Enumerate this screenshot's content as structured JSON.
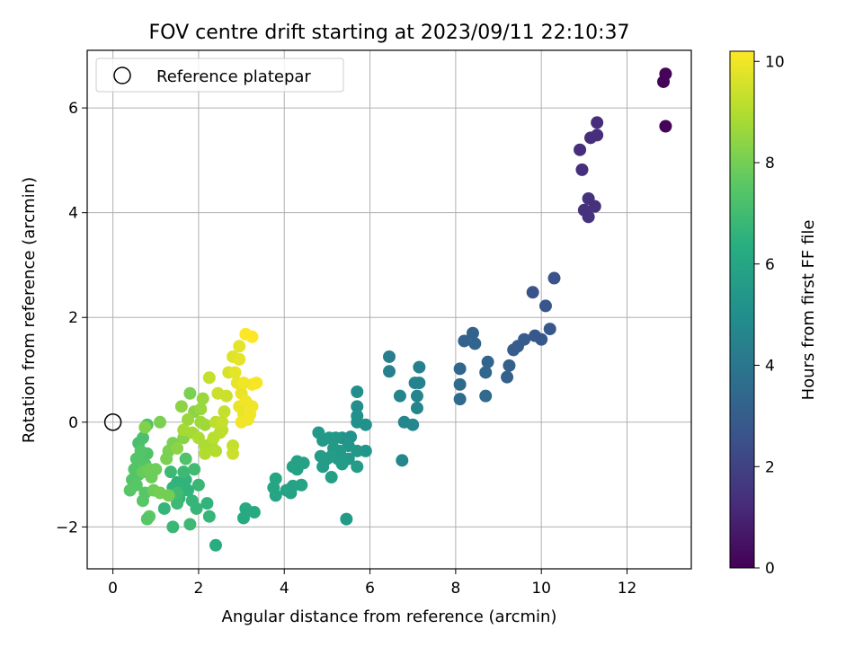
{
  "chart_data": {
    "type": "scatter",
    "title": "FOV centre drift starting at 2023/09/11 22:10:37",
    "xlabel": "Angular distance from reference (arcmin)",
    "ylabel": "Rotation from reference (arcmin)",
    "xlim": [
      -0.6,
      13.5
    ],
    "ylim": [
      -2.8,
      7.1
    ],
    "xticks": [
      0,
      2,
      4,
      6,
      8,
      10,
      12
    ],
    "yticks": [
      -2,
      0,
      2,
      4,
      6
    ],
    "grid": true,
    "legend": {
      "position": "top-left",
      "entries": [
        "Reference platepar"
      ]
    },
    "reference_point": {
      "x": 0,
      "y": 0
    },
    "colorbar": {
      "label": "Hours from first FF file",
      "range": [
        0,
        10.2
      ],
      "ticks": [
        0,
        2,
        4,
        6,
        8,
        10
      ],
      "colormap": "viridis"
    },
    "points": [
      [
        12.9,
        6.65,
        0.1
      ],
      [
        12.85,
        6.5,
        0.1
      ],
      [
        12.9,
        5.65,
        0.05
      ],
      [
        11.3,
        5.72,
        1.3
      ],
      [
        11.3,
        5.48,
        1.3
      ],
      [
        11.15,
        5.43,
        1.3
      ],
      [
        10.9,
        5.2,
        1.3
      ],
      [
        10.95,
        4.82,
        1.35
      ],
      [
        11.1,
        4.27,
        1.4
      ],
      [
        11.0,
        4.05,
        1.4
      ],
      [
        11.1,
        3.92,
        1.4
      ],
      [
        11.25,
        4.12,
        1.4
      ],
      [
        10.3,
        2.75,
        2.6
      ],
      [
        9.8,
        2.48,
        2.6
      ],
      [
        10.1,
        2.22,
        2.7
      ],
      [
        10.2,
        1.78,
        2.8
      ],
      [
        9.85,
        1.65,
        2.8
      ],
      [
        10.0,
        1.58,
        2.8
      ],
      [
        9.6,
        1.58,
        2.9
      ],
      [
        9.45,
        1.45,
        2.9
      ],
      [
        9.35,
        1.38,
        3.0
      ],
      [
        9.25,
        1.08,
        3.1
      ],
      [
        9.2,
        0.86,
        3.1
      ],
      [
        8.4,
        1.7,
        3.2
      ],
      [
        8.2,
        1.55,
        3.2
      ],
      [
        8.45,
        1.5,
        3.3
      ],
      [
        8.75,
        1.15,
        3.3
      ],
      [
        8.1,
        1.02,
        3.4
      ],
      [
        8.7,
        0.95,
        3.4
      ],
      [
        8.1,
        0.72,
        3.5
      ],
      [
        8.1,
        0.44,
        3.5
      ],
      [
        8.7,
        0.5,
        3.5
      ],
      [
        6.45,
        1.25,
        4.3
      ],
      [
        6.45,
        0.97,
        4.4
      ],
      [
        7.15,
        1.05,
        4.4
      ],
      [
        7.05,
        0.75,
        4.5
      ],
      [
        7.15,
        0.75,
        4.5
      ],
      [
        6.7,
        0.5,
        4.6
      ],
      [
        7.1,
        0.5,
        4.6
      ],
      [
        7.1,
        0.27,
        4.6
      ],
      [
        6.8,
        0.0,
        4.7
      ],
      [
        7.0,
        -0.05,
        4.7
      ],
      [
        6.75,
        -0.73,
        4.7
      ],
      [
        5.7,
        0.58,
        5.0
      ],
      [
        5.7,
        0.3,
        5.0
      ],
      [
        5.7,
        0.12,
        5.1
      ],
      [
        5.7,
        0.0,
        5.1
      ],
      [
        5.9,
        -0.05,
        5.1
      ],
      [
        5.55,
        -0.28,
        5.2
      ],
      [
        5.35,
        -0.3,
        5.2
      ],
      [
        5.9,
        -0.55,
        5.3
      ],
      [
        5.5,
        -0.45,
        5.3
      ],
      [
        5.7,
        -0.55,
        5.4
      ],
      [
        5.2,
        -0.3,
        5.4
      ],
      [
        5.05,
        -0.3,
        5.5
      ],
      [
        4.8,
        -0.2,
        5.5
      ],
      [
        4.9,
        -0.35,
        5.5
      ],
      [
        5.15,
        -0.5,
        5.5
      ],
      [
        5.3,
        -0.55,
        5.5
      ],
      [
        5.25,
        -0.7,
        5.5
      ],
      [
        5.5,
        -0.7,
        5.5
      ],
      [
        5.1,
        -0.65,
        5.6
      ],
      [
        5.0,
        -0.7,
        5.6
      ],
      [
        4.85,
        -0.65,
        5.6
      ],
      [
        5.35,
        -0.8,
        5.6
      ],
      [
        5.7,
        -0.85,
        5.6
      ],
      [
        4.9,
        -0.85,
        5.6
      ],
      [
        5.1,
        -1.05,
        5.7
      ],
      [
        5.45,
        -1.85,
        5.5
      ],
      [
        4.45,
        -0.78,
        5.8
      ],
      [
        4.3,
        -0.75,
        5.8
      ],
      [
        4.2,
        -0.85,
        5.8
      ],
      [
        4.3,
        -0.9,
        5.8
      ],
      [
        4.4,
        -1.2,
        5.9
      ],
      [
        4.2,
        -1.22,
        5.9
      ],
      [
        4.05,
        -1.3,
        5.9
      ],
      [
        4.15,
        -1.35,
        5.9
      ],
      [
        3.8,
        -1.08,
        6.0
      ],
      [
        3.75,
        -1.25,
        6.0
      ],
      [
        3.8,
        -1.4,
        6.0
      ],
      [
        3.1,
        -1.65,
        6.2
      ],
      [
        3.3,
        -1.72,
        6.2
      ],
      [
        3.05,
        -1.83,
        6.2
      ],
      [
        2.4,
        -2.35,
        6.3
      ],
      [
        1.5,
        -1.15,
        6.5
      ],
      [
        1.6,
        -1.2,
        6.6
      ],
      [
        1.75,
        -1.3,
        6.6
      ],
      [
        1.4,
        -1.25,
        6.6
      ],
      [
        1.7,
        -1.1,
        6.6
      ],
      [
        1.55,
        -1.45,
        6.7
      ],
      [
        1.85,
        -1.5,
        6.7
      ],
      [
        1.95,
        -1.65,
        6.7
      ],
      [
        2.2,
        -1.55,
        6.6
      ],
      [
        2.25,
        -1.8,
        6.7
      ],
      [
        1.2,
        -1.65,
        6.7
      ],
      [
        1.4,
        -2.0,
        6.8
      ],
      [
        1.8,
        -1.95,
        6.9
      ],
      [
        1.5,
        -1.55,
        6.9
      ],
      [
        2.0,
        -1.2,
        6.8
      ],
      [
        1.65,
        -0.95,
        6.9
      ],
      [
        1.35,
        -0.95,
        6.9
      ],
      [
        1.9,
        -0.9,
        7.0
      ],
      [
        1.5,
        -1.35,
        7.0
      ],
      [
        1.7,
        -0.7,
        7.3
      ],
      [
        0.8,
        -0.05,
        7.3
      ],
      [
        0.7,
        -0.3,
        7.2
      ],
      [
        0.6,
        -0.4,
        7.2
      ],
      [
        0.8,
        -0.6,
        7.3
      ],
      [
        0.65,
        -0.55,
        7.4
      ],
      [
        0.55,
        -0.7,
        7.4
      ],
      [
        0.75,
        -0.8,
        7.4
      ],
      [
        0.5,
        -0.9,
        7.4
      ],
      [
        0.6,
        -1.0,
        7.4
      ],
      [
        0.45,
        -1.1,
        7.4
      ],
      [
        0.4,
        -1.3,
        7.5
      ],
      [
        0.55,
        -1.2,
        7.5
      ],
      [
        0.75,
        -1.35,
        7.5
      ],
      [
        0.7,
        -1.5,
        7.5
      ],
      [
        0.85,
        -1.8,
        7.6
      ],
      [
        0.8,
        -1.85,
        7.5
      ],
      [
        0.7,
        -0.95,
        7.8
      ],
      [
        0.85,
        -0.9,
        7.9
      ],
      [
        0.9,
        -1.05,
        7.9
      ],
      [
        1.0,
        -0.9,
        7.9
      ],
      [
        0.95,
        -1.3,
        7.9
      ],
      [
        1.1,
        -1.35,
        8.0
      ],
      [
        1.3,
        -1.4,
        8.0
      ],
      [
        1.25,
        -0.7,
        8.1
      ],
      [
        1.3,
        -0.55,
        8.1
      ],
      [
        1.4,
        -0.4,
        8.1
      ],
      [
        1.1,
        0.0,
        8.1
      ],
      [
        0.75,
        -0.1,
        8.2
      ],
      [
        1.65,
        -0.3,
        8.3
      ],
      [
        1.5,
        -0.5,
        8.4
      ],
      [
        1.8,
        0.55,
        8.1
      ],
      [
        1.6,
        0.3,
        8.4
      ],
      [
        1.9,
        0.2,
        8.4
      ],
      [
        2.1,
        0.45,
        8.6
      ],
      [
        2.05,
        0.25,
        8.6
      ],
      [
        1.75,
        0.05,
        8.6
      ],
      [
        2.05,
        0.0,
        8.7
      ],
      [
        2.15,
        -0.05,
        8.7
      ],
      [
        1.65,
        -0.15,
        8.8
      ],
      [
        1.85,
        -0.2,
        8.8
      ],
      [
        2.0,
        -0.3,
        8.9
      ],
      [
        2.15,
        -0.45,
        8.9
      ],
      [
        2.3,
        -0.4,
        8.9
      ],
      [
        2.4,
        -0.55,
        9.0
      ],
      [
        2.15,
        -0.6,
        9.0
      ],
      [
        2.5,
        -0.2,
        9.1
      ],
      [
        2.35,
        -0.3,
        9.1
      ],
      [
        2.55,
        -0.15,
        9.2
      ],
      [
        2.4,
        0.0,
        9.2
      ],
      [
        2.55,
        0.0,
        9.3
      ],
      [
        2.6,
        0.2,
        9.3
      ],
      [
        2.25,
        0.85,
        9.3
      ],
      [
        2.45,
        0.55,
        9.4
      ],
      [
        2.8,
        -0.45,
        9.3
      ],
      [
        2.8,
        -0.6,
        9.4
      ],
      [
        2.65,
        0.5,
        9.4
      ],
      [
        2.7,
        0.95,
        9.6
      ],
      [
        2.8,
        1.25,
        9.7
      ],
      [
        2.95,
        1.45,
        9.8
      ],
      [
        2.95,
        1.2,
        9.8
      ],
      [
        2.85,
        0.95,
        9.8
      ],
      [
        2.9,
        0.75,
        9.9
      ],
      [
        3.0,
        0.55,
        9.9
      ],
      [
        2.95,
        0.3,
        9.9
      ],
      [
        3.05,
        0.15,
        9.9
      ],
      [
        3.0,
        0.0,
        10.0
      ],
      [
        3.15,
        0.05,
        10.0
      ],
      [
        3.2,
        0.15,
        10.0
      ],
      [
        3.25,
        0.3,
        10.0
      ],
      [
        3.1,
        0.4,
        10.0
      ],
      [
        3.25,
        0.72,
        10.1
      ],
      [
        3.35,
        0.75,
        10.1
      ],
      [
        3.1,
        1.68,
        10.2
      ],
      [
        3.25,
        1.63,
        10.2
      ],
      [
        3.05,
        0.75,
        10.0
      ]
    ]
  }
}
